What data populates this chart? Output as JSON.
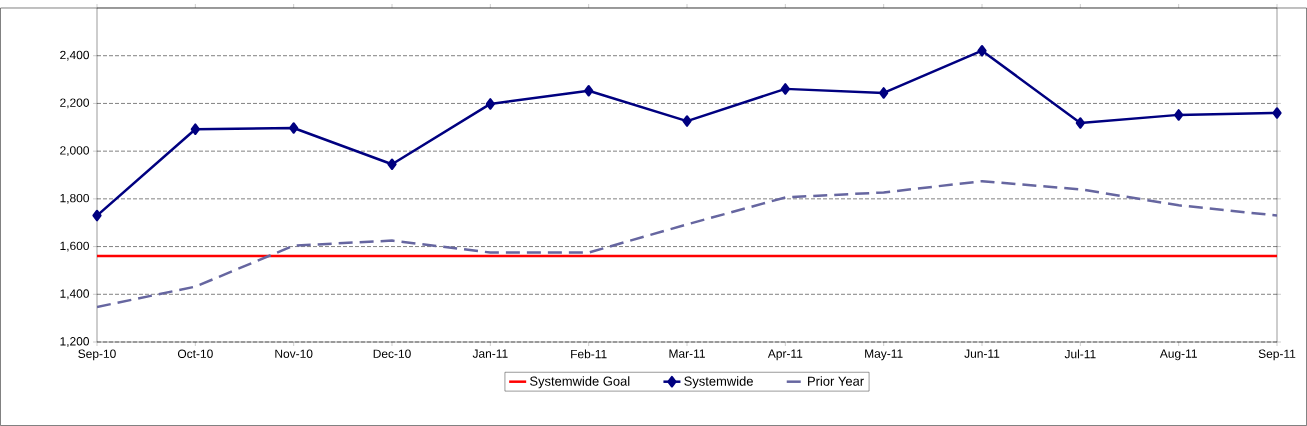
{
  "chart_data": {
    "type": "line",
    "categories": [
      "Sep-10",
      "Oct-10",
      "Nov-10",
      "Dec-10",
      "Jan-11",
      "Feb-11",
      "Mar-11",
      "Apr-11",
      "May-11",
      "Jun-11",
      "Jul-11",
      "Aug-11",
      "Sep-11"
    ],
    "series": [
      {
        "name": "Systemwide Goal",
        "color": "#ff0000",
        "marker": "none",
        "line_style": "solid",
        "values": [
          1560,
          1560,
          1560,
          1560,
          1560,
          1560,
          1560,
          1560,
          1560,
          1560,
          1560,
          1560,
          1560
        ]
      },
      {
        "name": "Systemwide",
        "color": "#000080",
        "marker": "diamond",
        "line_style": "solid",
        "values": [
          1730,
          2092,
          2097,
          1945,
          2198,
          2253,
          2126,
          2261,
          2244,
          2421,
          2118,
          2152,
          2160
        ]
      },
      {
        "name": "Prior Year",
        "color": "#6666a0",
        "marker": "none",
        "line_style": "dashed",
        "values": [
          1347,
          1432,
          1604,
          1625,
          1575,
          1575,
          1693,
          1806,
          1827,
          1874,
          1840,
          1773,
          1730
        ]
      }
    ],
    "ylim": [
      1200,
      2600
    ],
    "yticks": [
      {
        "value": 1200,
        "label": "1,200"
      },
      {
        "value": 1400,
        "label": "1,400"
      },
      {
        "value": 1600,
        "label": "1,600"
      },
      {
        "value": 1800,
        "label": "1,800"
      },
      {
        "value": 2000,
        "label": "2,000"
      },
      {
        "value": 2200,
        "label": "2,200"
      },
      {
        "value": 2400,
        "label": "2,400"
      }
    ],
    "grid": "y",
    "legend": "bottom"
  }
}
